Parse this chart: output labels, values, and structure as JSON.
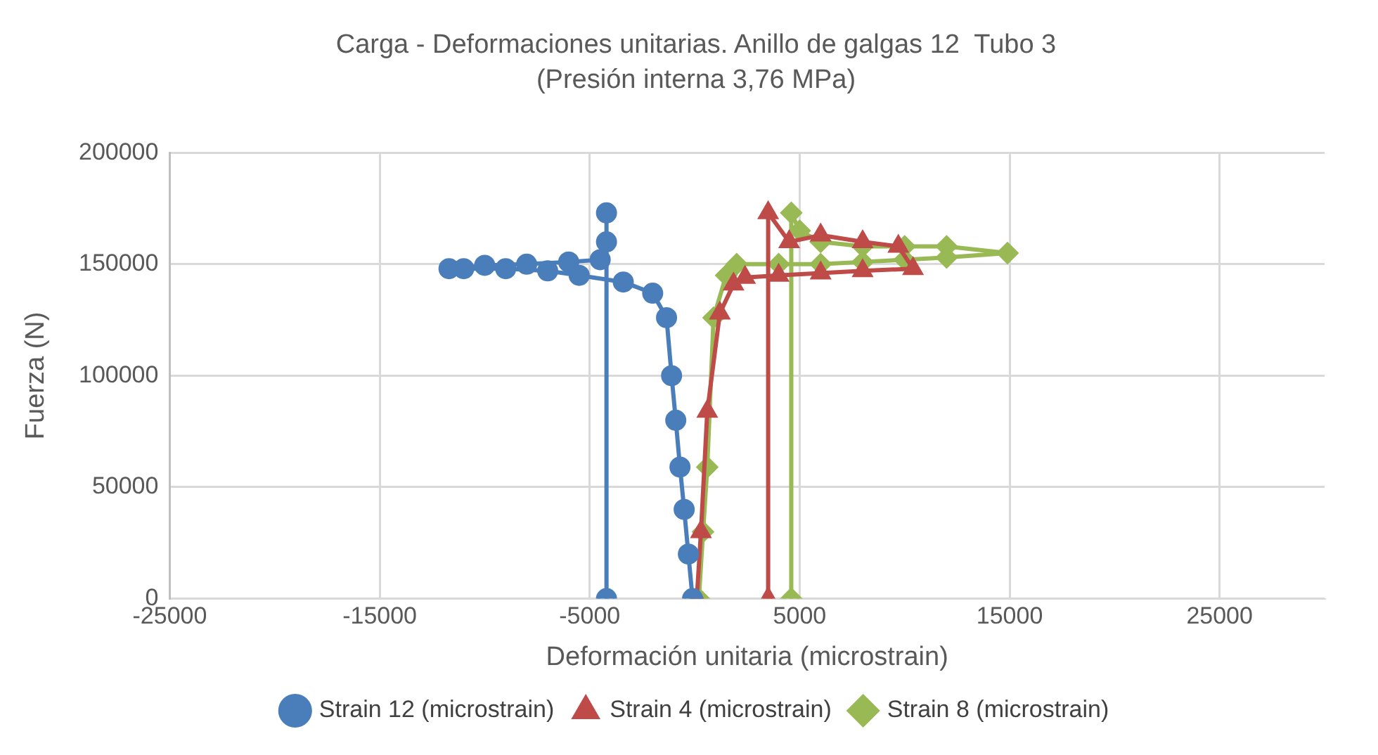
{
  "chart_data": {
    "type": "line",
    "title": "Carga - Deformaciones unitarias. Anillo de galgas 12  Tubo 3",
    "subtitle": "(Presión interna 3,76 MPa)",
    "xlabel": "Deformación unitaria (microstrain)",
    "ylabel": "Fuerza (N)",
    "xlim": [
      -25000,
      30000
    ],
    "xticks": [
      -25000,
      -15000,
      -5000,
      5000,
      15000,
      25000
    ],
    "ylim": [
      0,
      200000
    ],
    "yticks": [
      0,
      50000,
      100000,
      150000,
      200000
    ],
    "grid": true,
    "legend": "bottom",
    "series": [
      {
        "name": "Strain 12 (microstrain)",
        "color": "#4a7ebb",
        "marker": "circle",
        "x": [
          -100,
          -300,
          -500,
          -700,
          -900,
          -1100,
          -1340,
          -2000,
          -3400,
          -5500,
          -7000,
          -9000,
          -11000,
          -11700,
          -10000,
          -8000,
          -6000,
          -4500,
          -4200,
          -4200,
          -4200
        ],
        "values": [
          0,
          20000,
          40000,
          59000,
          80000,
          100000,
          126000,
          137000,
          142000,
          145000,
          147000,
          148000,
          148000,
          148000,
          149500,
          150000,
          151000,
          152000,
          160000,
          173000,
          0
        ]
      },
      {
        "name": "Strain 4 (microstrain)",
        "color": "#be4b48",
        "marker": "triangle",
        "x": [
          100,
          300,
          600,
          1200,
          1850,
          2400,
          4000,
          6000,
          8000,
          10400,
          9700,
          8000,
          6000,
          4500,
          3500,
          3500
        ],
        "values": [
          0,
          30000,
          84000,
          128000,
          141000,
          144000,
          145000,
          146000,
          147000,
          148000,
          158000,
          160000,
          163000,
          160000,
          173000,
          0
        ]
      },
      {
        "name": "Strain 8 (microstrain)",
        "color": "#98b954",
        "marker": "diamond",
        "x": [
          200,
          400,
          600,
          900,
          1500,
          2000,
          4000,
          6000,
          8000,
          10000,
          12000,
          14900,
          12000,
          10000,
          8000,
          6000,
          5000,
          4600,
          4600
        ],
        "values": [
          0,
          30000,
          59000,
          126000,
          145000,
          150000,
          150000,
          150000,
          151000,
          152000,
          153000,
          155000,
          158000,
          158000,
          158000,
          160000,
          165000,
          173000,
          0
        ]
      }
    ]
  }
}
